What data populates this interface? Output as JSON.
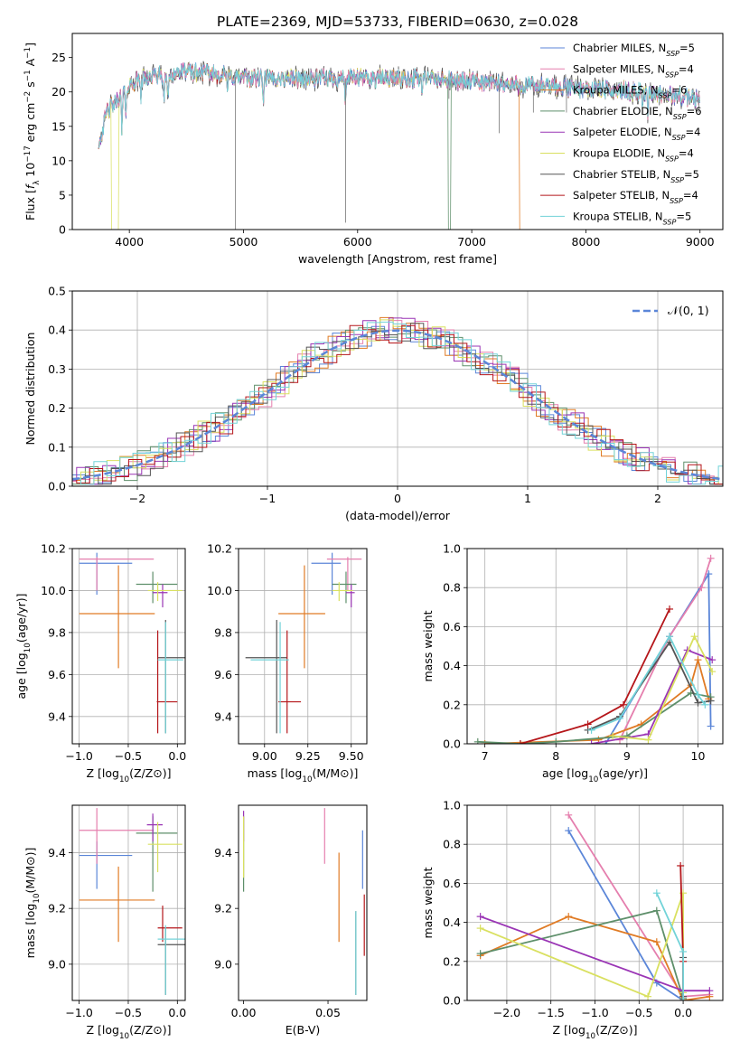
{
  "figure": {
    "title": "PLATE=2369, MJD=53733, FIBERID=0630, z=0.028"
  },
  "models": [
    {
      "name": "Chabrier MILES",
      "n_ssp": 5,
      "color": "#5b86d8"
    },
    {
      "name": "Salpeter MILES",
      "n_ssp": 4,
      "color": "#e57fae"
    },
    {
      "name": "Kroupa MILES",
      "n_ssp": 6,
      "color": "#e07b25"
    },
    {
      "name": "Chabrier ELODIE",
      "n_ssp": 6,
      "color": "#5e8f6a"
    },
    {
      "name": "Salpeter ELODIE",
      "n_ssp": 4,
      "color": "#9a35b5"
    },
    {
      "name": "Kroupa ELODIE",
      "n_ssp": 4,
      "color": "#d9e060"
    },
    {
      "name": "Chabrier STELIB",
      "n_ssp": 5,
      "color": "#555555"
    },
    {
      "name": "Salpeter STELIB",
      "n_ssp": 4,
      "color": "#b5161a"
    },
    {
      "name": "Kroupa STELIB",
      "n_ssp": 5,
      "color": "#72d3d8"
    }
  ],
  "chart_data": [
    {
      "id": "spectrum",
      "type": "line",
      "xlabel": "wavelength [Angstrom, rest frame]",
      "ylabel": "Flux [f_λ 10^-17 erg cm^-2 s^-1 A^-1]",
      "xlim": [
        3500,
        9200
      ],
      "ylim": [
        0,
        28.5
      ],
      "xticks": [
        4000,
        5000,
        6000,
        7000,
        8000,
        9000
      ],
      "yticks": [
        0,
        5,
        10,
        15,
        20,
        25
      ],
      "legend": "upper right",
      "grid": false,
      "data_range": [
        3730,
        9000
      ],
      "continuum": [
        [
          3730,
          12
        ],
        [
          3800,
          17
        ],
        [
          3900,
          19
        ],
        [
          4000,
          21
        ],
        [
          4100,
          22
        ],
        [
          4300,
          22.5
        ],
        [
          4500,
          23
        ],
        [
          4800,
          22.5
        ],
        [
          5000,
          22
        ],
        [
          5300,
          22
        ],
        [
          5600,
          22
        ],
        [
          6000,
          22
        ],
        [
          6500,
          22
        ],
        [
          7000,
          21.5
        ],
        [
          7400,
          21
        ],
        [
          8000,
          20.5
        ],
        [
          8500,
          20
        ],
        [
          9000,
          19
        ]
      ],
      "absorption_lines": [
        [
          3934,
          6
        ],
        [
          3969,
          5
        ],
        [
          4102,
          3
        ],
        [
          4304,
          5
        ],
        [
          4340,
          4
        ],
        [
          4861,
          3
        ],
        [
          5175,
          4
        ],
        [
          5892,
          3
        ],
        [
          6563,
          2
        ],
        [
          8498,
          2
        ],
        [
          8542,
          3
        ],
        [
          8662,
          2
        ]
      ],
      "model_dropouts": [
        {
          "model": "Kroupa ELODIE",
          "from": 3840,
          "to": 3905
        },
        {
          "model": "Chabrier ELODIE",
          "from": 6795,
          "to": 6815
        },
        {
          "model": "Kroupa MILES",
          "from": 7420,
          "to": 7440
        }
      ]
    },
    {
      "id": "residual-histogram",
      "type": "bar",
      "xlabel": "(data-model)/error",
      "ylabel": "Normed distribution",
      "xlim": [
        -2.5,
        2.5
      ],
      "ylim": [
        0,
        0.5
      ],
      "xticks": [
        -2,
        -1,
        0,
        1,
        2
      ],
      "yticks": [
        0,
        0.1,
        0.2,
        0.3,
        0.4,
        0.5
      ],
      "legend": "upper right",
      "grid": true,
      "bin_width": 0.1,
      "reference_curve": {
        "label": "𝒩(0, 1)",
        "mean": 0,
        "sigma": 1,
        "color": "#5b86d8",
        "dashed": true
      },
      "histogram_noise": 0.035
    },
    {
      "id": "age-vs-metallicity",
      "type": "scatter",
      "xlabel": "Z [log10(Z/Z⊙)]",
      "ylabel": "age  [log10(age/yr)]",
      "xlim": [
        -1.07,
        0.08
      ],
      "ylim": [
        9.27,
        10.2
      ],
      "xticks": [
        -1.0,
        -0.5,
        0.0
      ],
      "yticks": [
        9.4,
        9.6,
        9.8,
        10.0,
        10.2
      ],
      "grid": true,
      "points": [
        {
          "model": "Chabrier MILES",
          "x": -0.82,
          "xerr": [
            0.18,
            0.36
          ],
          "y": 10.13,
          "yerr": [
            0.15,
            0.05
          ]
        },
        {
          "model": "Salpeter MILES",
          "x": -0.82,
          "xerr": [
            0.18,
            0.58
          ],
          "y": 10.15,
          "yerr": [
            0.15,
            0.01
          ]
        },
        {
          "model": "Kroupa MILES",
          "x": -0.6,
          "xerr": [
            0.4,
            0.37
          ],
          "y": 9.89,
          "yerr": [
            0.26,
            0.23
          ]
        },
        {
          "model": "Chabrier ELODIE",
          "x": -0.25,
          "xerr": [
            0.17,
            0.25
          ],
          "y": 10.03,
          "yerr": [
            0.09,
            0.06
          ]
        },
        {
          "model": "Salpeter ELODIE",
          "x": -0.15,
          "xerr": [
            0.1,
            0.05
          ],
          "y": 9.99,
          "yerr": [
            0.07,
            0.04
          ]
        },
        {
          "model": "Kroupa ELODIE",
          "x": -0.2,
          "xerr": [
            0.1,
            0.25
          ],
          "y": 10.0,
          "yerr": [
            0.05,
            0.04
          ]
        },
        {
          "model": "Chabrier STELIB",
          "x": -0.12,
          "xerr": [
            0.08,
            0.2
          ],
          "y": 9.68,
          "yerr": [
            0.36,
            0.18
          ]
        },
        {
          "model": "Salpeter STELIB",
          "x": -0.2,
          "xerr": [
            0.01,
            0.2
          ],
          "y": 9.47,
          "yerr": [
            0.15,
            0.34
          ]
        },
        {
          "model": "Kroupa STELIB",
          "x": -0.12,
          "xerr": [
            0.08,
            0.18
          ],
          "y": 9.67,
          "yerr": [
            0.35,
            0.18
          ]
        }
      ]
    },
    {
      "id": "age-vs-mass",
      "type": "scatter",
      "xlabel": "mass [log10(M/M⊙)]",
      "ylabel": "",
      "xlim": [
        8.85,
        9.59
      ],
      "ylim": [
        9.27,
        10.2
      ],
      "xticks": [
        9.0,
        9.25,
        9.5
      ],
      "yticks": [
        9.4,
        9.6,
        9.8,
        10.0,
        10.2
      ],
      "grid": true,
      "points": [
        {
          "model": "Chabrier MILES",
          "x": 9.39,
          "xerr": [
            0.12,
            0.05
          ],
          "y": 10.13,
          "yerr": [
            0.15,
            0.05
          ]
        },
        {
          "model": "Salpeter MILES",
          "x": 9.48,
          "xerr": [
            0.12,
            0.08
          ],
          "y": 10.15,
          "yerr": [
            0.15,
            0.01
          ]
        },
        {
          "model": "Kroupa MILES",
          "x": 9.23,
          "xerr": [
            0.15,
            0.12
          ],
          "y": 9.89,
          "yerr": [
            0.26,
            0.23
          ]
        },
        {
          "model": "Chabrier ELODIE",
          "x": 9.47,
          "xerr": [
            0.08,
            0.06
          ],
          "y": 10.03,
          "yerr": [
            0.09,
            0.06
          ]
        },
        {
          "model": "Salpeter ELODIE",
          "x": 9.5,
          "xerr": [
            0.03,
            0.02
          ],
          "y": 9.99,
          "yerr": [
            0.07,
            0.04
          ]
        },
        {
          "model": "Kroupa ELODIE",
          "x": 9.43,
          "xerr": [
            0.04,
            0.08
          ],
          "y": 10.0,
          "yerr": [
            0.05,
            0.04
          ]
        },
        {
          "model": "Chabrier STELIB",
          "x": 9.07,
          "xerr": [
            0.18,
            0.06
          ],
          "y": 9.68,
          "yerr": [
            0.36,
            0.18
          ]
        },
        {
          "model": "Salpeter STELIB",
          "x": 9.13,
          "xerr": [
            0.05,
            0.08
          ],
          "y": 9.47,
          "yerr": [
            0.15,
            0.34
          ]
        },
        {
          "model": "Kroupa STELIB",
          "x": 9.09,
          "xerr": [
            0.17,
            0.05
          ],
          "y": 9.67,
          "yerr": [
            0.35,
            0.18
          ]
        }
      ]
    },
    {
      "id": "weight-vs-age",
      "type": "line",
      "xlabel": "age  [log10(age/yr)]",
      "ylabel": "mass weight",
      "xlim": [
        6.75,
        10.35
      ],
      "ylim": [
        0,
        1
      ],
      "xticks": [
        7,
        8,
        9,
        10
      ],
      "yticks": [
        0,
        0.2,
        0.4,
        0.6,
        0.8,
        1.0
      ],
      "grid": true,
      "series": [
        {
          "model": "Chabrier MILES",
          "x": [
            8.7,
            9.6,
            10.15,
            10.18
          ],
          "y": [
            0.0,
            0.55,
            0.87,
            0.09
          ]
        },
        {
          "model": "Salpeter MILES",
          "x": [
            8.9,
            9.6,
            10.05,
            10.18
          ],
          "y": [
            0.02,
            0.55,
            0.8,
            0.95
          ]
        },
        {
          "model": "Kroupa MILES",
          "x": [
            7.0,
            8.6,
            9.2,
            9.9,
            10.0,
            10.15
          ],
          "y": [
            0.0,
            0.02,
            0.1,
            0.3,
            0.43,
            0.23
          ]
        },
        {
          "model": "Chabrier ELODIE",
          "x": [
            6.9,
            7.5,
            8.0,
            9.0,
            9.9,
            10.18
          ],
          "y": [
            0.01,
            0.0,
            0.01,
            0.04,
            0.26,
            0.24
          ]
        },
        {
          "model": "Salpeter ELODIE",
          "x": [
            8.5,
            9.3,
            9.85,
            10.2
          ],
          "y": [
            0.0,
            0.05,
            0.48,
            0.43
          ]
        },
        {
          "model": "Kroupa ELODIE",
          "x": [
            8.8,
            9.3,
            9.95,
            10.2
          ],
          "y": [
            0.04,
            0.02,
            0.55,
            0.37
          ]
        },
        {
          "model": "Chabrier STELIB",
          "x": [
            8.45,
            8.9,
            9.6,
            10.0,
            10.18
          ],
          "y": [
            0.07,
            0.14,
            0.52,
            0.21,
            0.22
          ]
        },
        {
          "model": "Salpeter STELIB",
          "x": [
            7.5,
            8.45,
            8.95,
            9.6
          ],
          "y": [
            0.0,
            0.1,
            0.2,
            0.69
          ]
        },
        {
          "model": "Kroupa STELIB",
          "x": [
            8.5,
            8.9,
            9.6,
            10.0,
            10.1
          ],
          "y": [
            0.07,
            0.13,
            0.55,
            0.25,
            0.2
          ]
        }
      ]
    },
    {
      "id": "mass-vs-metallicity",
      "type": "scatter",
      "xlabel": "Z [log10(Z/Z⊙)]",
      "ylabel": "mass [log10(M/M⊙)]",
      "xlim": [
        -1.07,
        0.08
      ],
      "ylim": [
        8.87,
        9.57
      ],
      "xticks": [
        -1.0,
        -0.5,
        0.0
      ],
      "yticks": [
        9.0,
        9.2,
        9.4
      ],
      "grid": true,
      "points": [
        {
          "model": "Chabrier MILES",
          "x": -0.82,
          "xerr": [
            0.18,
            0.36
          ],
          "y": 9.39,
          "yerr": [
            0.12,
            0.05
          ]
        },
        {
          "model": "Salpeter MILES",
          "x": -0.82,
          "xerr": [
            0.18,
            0.58
          ],
          "y": 9.48,
          "yerr": [
            0.12,
            0.08
          ]
        },
        {
          "model": "Kroupa MILES",
          "x": -0.6,
          "xerr": [
            0.4,
            0.37
          ],
          "y": 9.23,
          "yerr": [
            0.15,
            0.12
          ]
        },
        {
          "model": "Chabrier ELODIE",
          "x": -0.25,
          "xerr": [
            0.17,
            0.25
          ],
          "y": 9.47,
          "yerr": [
            0.21,
            0.06
          ]
        },
        {
          "model": "Salpeter ELODIE",
          "x": -0.25,
          "xerr": [
            0.06,
            0.1
          ],
          "y": 9.5,
          "yerr": [
            0.06,
            0.04
          ]
        },
        {
          "model": "Kroupa ELODIE",
          "x": -0.2,
          "xerr": [
            0.1,
            0.25
          ],
          "y": 9.43,
          "yerr": [
            0.1,
            0.08
          ]
        },
        {
          "model": "Chabrier STELIB",
          "x": -0.12,
          "xerr": [
            0.08,
            0.2
          ],
          "y": 9.07,
          "yerr": [
            0.18,
            0.06
          ]
        },
        {
          "model": "Salpeter STELIB",
          "x": -0.15,
          "xerr": [
            0.05,
            0.2
          ],
          "y": 9.13,
          "yerr": [
            0.05,
            0.08
          ]
        },
        {
          "model": "Kroupa STELIB",
          "x": -0.12,
          "xerr": [
            0.08,
            0.2
          ],
          "y": 9.09,
          "yerr": [
            0.2,
            0.05
          ]
        }
      ]
    },
    {
      "id": "mass-vs-extinction",
      "type": "scatter",
      "xlabel": "E(B-V)",
      "ylabel": "",
      "xlim": [
        -0.003,
        0.073
      ],
      "ylim": [
        8.87,
        9.57
      ],
      "xticks": [
        0.0,
        0.05
      ],
      "yticks": [
        9.0,
        9.2,
        9.4
      ],
      "grid": false,
      "points": [
        {
          "model": "Chabrier MILES",
          "x": 0.0705,
          "xerr": [
            0,
            0
          ],
          "y": 9.39,
          "yerr": [
            0.12,
            0.09
          ]
        },
        {
          "model": "Salpeter MILES",
          "x": 0.048,
          "xerr": [
            0,
            0
          ],
          "y": 9.48,
          "yerr": [
            0.12,
            0.08
          ]
        },
        {
          "model": "Kroupa MILES",
          "x": 0.0565,
          "xerr": [
            0,
            0
          ],
          "y": 9.23,
          "yerr": [
            0.15,
            0.17
          ]
        },
        {
          "model": "Chabrier ELODIE",
          "x": 0.0,
          "xerr": [
            0,
            0
          ],
          "y": 9.47,
          "yerr": [
            0.21,
            0.06
          ]
        },
        {
          "model": "Salpeter ELODIE",
          "x": 0.0,
          "xerr": [
            0,
            0
          ],
          "y": 9.5,
          "yerr": [
            0.06,
            0.05
          ]
        },
        {
          "model": "Kroupa ELODIE",
          "x": 0.0,
          "xerr": [
            0,
            0
          ],
          "y": 9.43,
          "yerr": [
            0.12,
            0.1
          ]
        },
        {
          "model": "Chabrier STELIB",
          "x": 0.0665,
          "xerr": [
            0,
            0
          ],
          "y": 9.07,
          "yerr": [
            0.18,
            0.12
          ]
        },
        {
          "model": "Salpeter STELIB",
          "x": 0.0715,
          "xerr": [
            0,
            0
          ],
          "y": 9.13,
          "yerr": [
            0.1,
            0.12
          ]
        },
        {
          "model": "Kroupa STELIB",
          "x": 0.0665,
          "xerr": [
            0,
            0
          ],
          "y": 9.09,
          "yerr": [
            0.2,
            0.1
          ]
        }
      ]
    },
    {
      "id": "weight-vs-metallicity",
      "type": "line",
      "xlabel": "Z [log10(Z/Z⊙)]",
      "ylabel": "mass weight",
      "xlim": [
        -2.45,
        0.45
      ],
      "ylim": [
        0,
        1
      ],
      "xticks": [
        -2.0,
        -1.5,
        -1.0,
        -0.5,
        0.0
      ],
      "yticks": [
        0,
        0.2,
        0.4,
        0.6,
        0.8,
        1.0
      ],
      "grid": true,
      "series": [
        {
          "model": "Chabrier MILES",
          "x": [
            -1.3,
            -0.3,
            0.0
          ],
          "y": [
            0.87,
            0.09,
            0.0
          ]
        },
        {
          "model": "Salpeter MILES",
          "x": [
            -1.3,
            0.0,
            0.3
          ],
          "y": [
            0.95,
            0.02,
            0.03
          ]
        },
        {
          "model": "Kroupa MILES",
          "x": [
            -2.3,
            -1.3,
            -0.3,
            0.0,
            0.3
          ],
          "y": [
            0.23,
            0.43,
            0.3,
            0.0,
            0.02
          ]
        },
        {
          "model": "Chabrier ELODIE",
          "x": [
            -2.3,
            -0.3,
            0.0
          ],
          "y": [
            0.24,
            0.46,
            0.01
          ]
        },
        {
          "model": "Salpeter ELODIE",
          "x": [
            -2.3,
            0.0,
            0.3
          ],
          "y": [
            0.43,
            0.05,
            0.05
          ]
        },
        {
          "model": "Kroupa ELODIE",
          "x": [
            -2.3,
            -0.4,
            0.0,
            0.0
          ],
          "y": [
            0.37,
            0.02,
            0.55,
            0.04
          ]
        },
        {
          "model": "Chabrier STELIB",
          "x": [
            0.0,
            0.0
          ],
          "y": [
            0.22,
            0.02
          ]
        },
        {
          "model": "Salpeter STELIB",
          "x": [
            -0.03,
            0.0,
            0.0
          ],
          "y": [
            0.69,
            0.2,
            0.0
          ]
        },
        {
          "model": "Kroupa STELIB",
          "x": [
            -0.3,
            0.0,
            0.0
          ],
          "y": [
            0.55,
            0.25,
            0.0
          ]
        }
      ]
    }
  ]
}
